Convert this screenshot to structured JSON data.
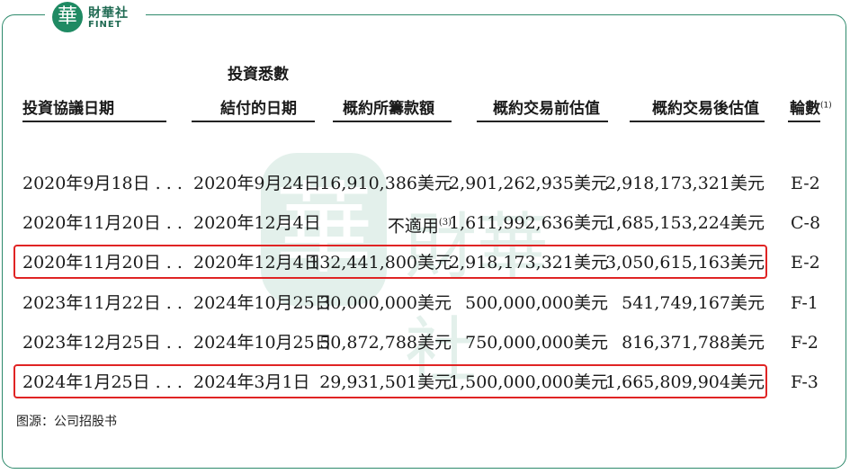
{
  "logo": {
    "mark": "華",
    "cn": "財華社",
    "en": "FINET"
  },
  "watermark": {
    "mark": "華",
    "text": "財華社"
  },
  "headers": {
    "col1": "投資協議日期",
    "col2_line1": "投資悉數",
    "col2_line2": "結付的日期",
    "col3": "概約所籌款額",
    "col4": "概約交易前估值",
    "col5": "概約交易後估值",
    "col6": "輪數",
    "col6_note": "(1)"
  },
  "rows": [
    {
      "agreement_date": "2020年9月18日 . . .",
      "settlement_date": "2020年9月24日",
      "amount": "16,910,386美元",
      "amount_note": "",
      "pre_value": "2,901,262,935美元",
      "post_value": "2,918,173,321美元",
      "round": "E-2",
      "highlight": false
    },
    {
      "agreement_date": "2020年11月20日 . .",
      "settlement_date": "2020年12月4日",
      "amount": "不適用",
      "amount_note": "(3)",
      "pre_value": "1,611,992,636美元",
      "post_value": "1,685,153,224美元",
      "round": "C-8",
      "highlight": false
    },
    {
      "agreement_date": "2020年11月20日 . .",
      "settlement_date": "2020年12月4日",
      "amount": "132,441,800美元",
      "amount_note": "",
      "pre_value": "2,918,173,321美元",
      "post_value": "3,050,615,163美元",
      "round": "E-2",
      "highlight": true
    },
    {
      "agreement_date": "2023年11月22日 . .",
      "settlement_date": "2024年10月25日",
      "amount": "30,000,000美元",
      "amount_note": "",
      "pre_value": "500,000,000美元",
      "post_value": "541,749,167美元",
      "round": "F-1",
      "highlight": false
    },
    {
      "agreement_date": "2023年12月25日 . .",
      "settlement_date": "2024年10月25日",
      "amount": "50,872,788美元",
      "amount_note": "",
      "pre_value": "750,000,000美元",
      "post_value": "816,371,788美元",
      "round": "F-2",
      "highlight": false
    },
    {
      "agreement_date": "2024年1月25日 . . .",
      "settlement_date": "2024年3月1日",
      "amount": "29,931,501美元",
      "amount_note": "",
      "pre_value": "1,500,000,000美元",
      "post_value": "1,665,809,904美元",
      "round": "F-3",
      "highlight": true
    }
  ],
  "source": "图源：公司招股书",
  "colors": {
    "frame": "#2e8a6c",
    "highlight": "#e02424",
    "brand": "#1f8a63"
  }
}
